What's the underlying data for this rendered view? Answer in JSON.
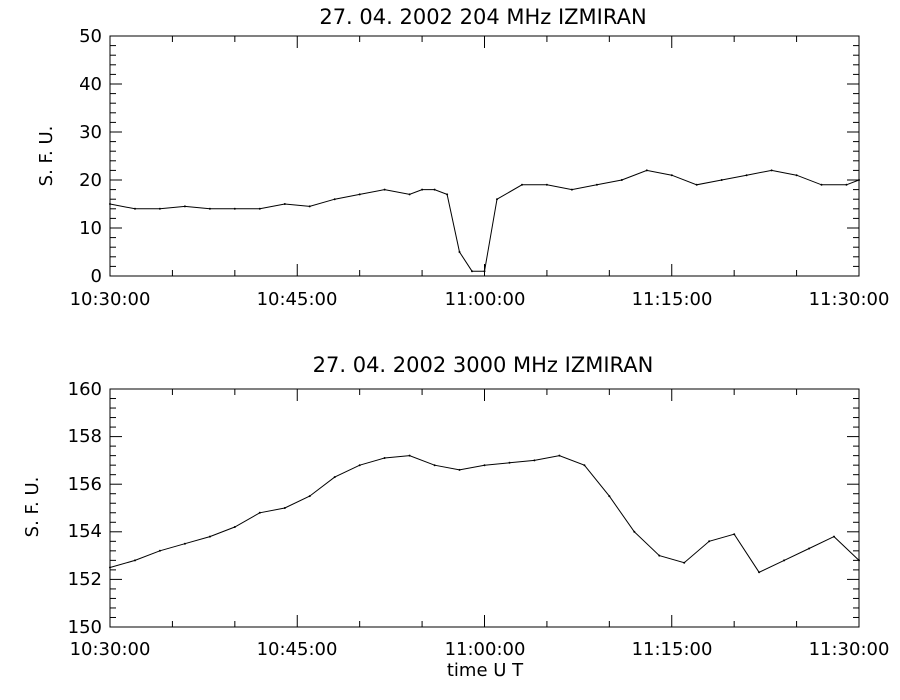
{
  "chart_data": [
    {
      "type": "line",
      "title": "27.  04.  2002    204  MHz    IZMIRAN",
      "xlabel": "",
      "ylabel": "S. F. U.",
      "xlim": [
        "10:30:00",
        "11:30:00"
      ],
      "ylim": [
        0,
        50
      ],
      "x_ticks": [
        "10:30:00",
        "10:45:00",
        "11:00:00",
        "11:15:00",
        "11:30:00"
      ],
      "y_ticks": [
        "0",
        "10",
        "20",
        "30",
        "40",
        "50"
      ],
      "grid": false,
      "x": [
        "10:30:00",
        "10:32:00",
        "10:34:00",
        "10:36:00",
        "10:38:00",
        "10:40:00",
        "10:42:00",
        "10:44:00",
        "10:46:00",
        "10:48:00",
        "10:50:00",
        "10:52:00",
        "10:54:00",
        "10:55:00",
        "10:56:00",
        "10:57:00",
        "10:58:00",
        "10:59:00",
        "11:00:00",
        "11:01:00",
        "11:03:00",
        "11:05:00",
        "11:07:00",
        "11:09:00",
        "11:11:00",
        "11:13:00",
        "11:15:00",
        "11:17:00",
        "11:19:00",
        "11:21:00",
        "11:23:00",
        "11:25:00",
        "11:27:00",
        "11:29:00",
        "11:30:00"
      ],
      "values": [
        15,
        14,
        14,
        14.5,
        14,
        14,
        14,
        15,
        14.5,
        16,
        17,
        18,
        17,
        18,
        18,
        17,
        5,
        1,
        1,
        16,
        19,
        19,
        18,
        19,
        20,
        22,
        21,
        19,
        20,
        21,
        22,
        21,
        19,
        19,
        20
      ]
    },
    {
      "type": "line",
      "title": "27.  04.  2002    3000  MHz    IZMIRAN",
      "xlabel": "time   U T",
      "ylabel": "S. F. U.",
      "xlim": [
        "10:30:00",
        "11:30:00"
      ],
      "ylim": [
        150,
        160
      ],
      "x_ticks": [
        "10:30:00",
        "10:45:00",
        "11:00:00",
        "11:15:00",
        "11:30:00"
      ],
      "y_ticks": [
        "150",
        "152",
        "154",
        "156",
        "158",
        "160"
      ],
      "grid": false,
      "x": [
        "10:30:00",
        "10:32:00",
        "10:34:00",
        "10:36:00",
        "10:38:00",
        "10:40:00",
        "10:42:00",
        "10:44:00",
        "10:46:00",
        "10:48:00",
        "10:50:00",
        "10:52:00",
        "10:54:00",
        "10:56:00",
        "10:58:00",
        "11:00:00",
        "11:02:00",
        "11:04:00",
        "11:06:00",
        "11:08:00",
        "11:10:00",
        "11:12:00",
        "11:14:00",
        "11:16:00",
        "11:18:00",
        "11:20:00",
        "11:22:00",
        "11:24:00",
        "11:26:00",
        "11:28:00",
        "11:30:00"
      ],
      "values": [
        152.5,
        152.8,
        153.2,
        153.5,
        153.8,
        154.2,
        154.8,
        155.0,
        155.5,
        156.3,
        156.8,
        157.1,
        157.2,
        156.8,
        156.6,
        156.8,
        156.9,
        157.0,
        157.2,
        156.8,
        155.5,
        154.0,
        153.0,
        152.7,
        153.6,
        153.9,
        152.3,
        152.8,
        153.3,
        153.8,
        152.8
      ]
    }
  ]
}
